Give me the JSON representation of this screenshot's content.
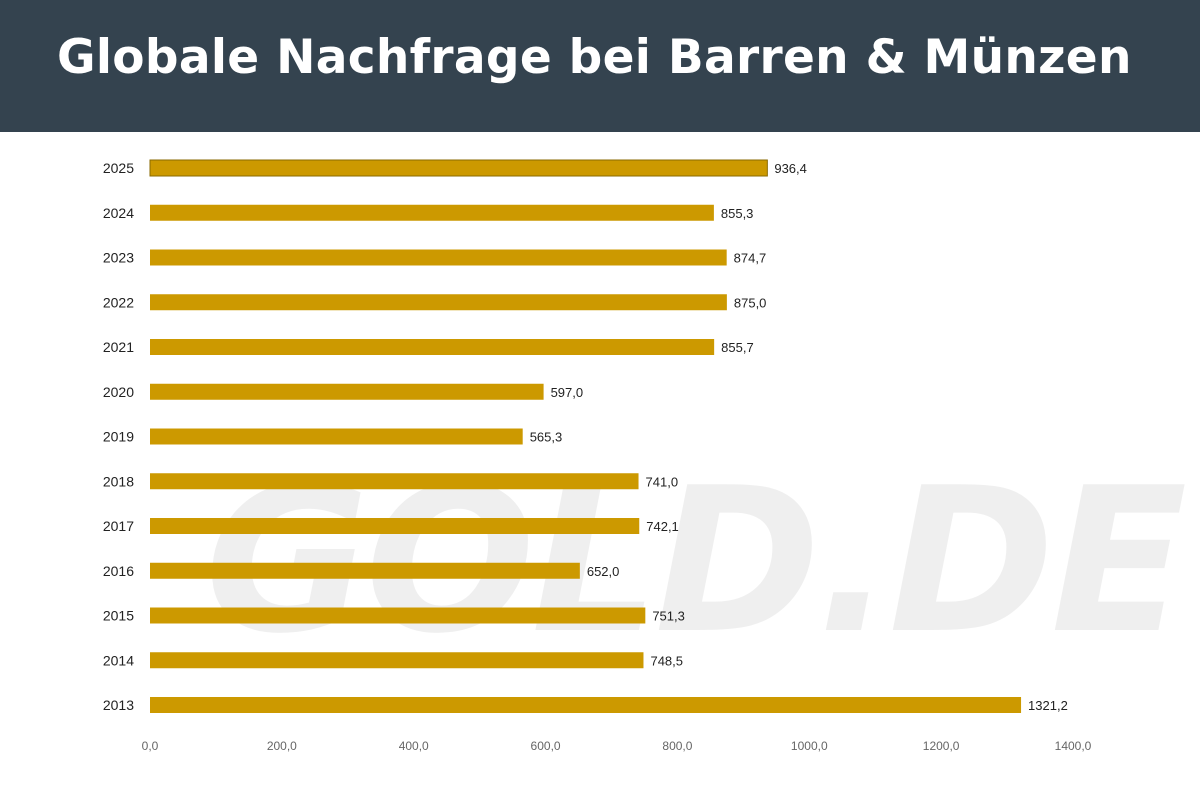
{
  "header": {
    "title": "Globale Nachfrage bei Barren & Münzen"
  },
  "watermark": "GOLD.DE",
  "chart_data": {
    "type": "bar",
    "orientation": "horizontal",
    "title": "Globale Nachfrage bei Barren & Münzen",
    "categories": [
      "2025",
      "2024",
      "2023",
      "2022",
      "2021",
      "2020",
      "2019",
      "2018",
      "2017",
      "2016",
      "2015",
      "2014",
      "2013"
    ],
    "values": [
      936.4,
      855.3,
      874.7,
      875.0,
      855.7,
      597.0,
      565.3,
      741.0,
      742.1,
      652.0,
      751.3,
      748.5,
      1321.2
    ],
    "data_labels": [
      "936,4",
      "855,3",
      "874,7",
      "875,0",
      "855,7",
      "597,0",
      "565,3",
      "741,0",
      "742,1",
      "652,0",
      "751,3",
      "748,5",
      "1321,2"
    ],
    "xlim": [
      0,
      1400
    ],
    "xticks": [
      0,
      200,
      400,
      600,
      800,
      1000,
      1200,
      1400
    ],
    "xtick_labels": [
      "0,0",
      "200,0",
      "400,0",
      "600,0",
      "800,0",
      "1000,0",
      "1200,0",
      "1400,0"
    ],
    "xlabel": "",
    "ylabel": "",
    "grid": false,
    "legend": "none",
    "bar_color": "#cc9900",
    "header_color": "#34434f"
  }
}
